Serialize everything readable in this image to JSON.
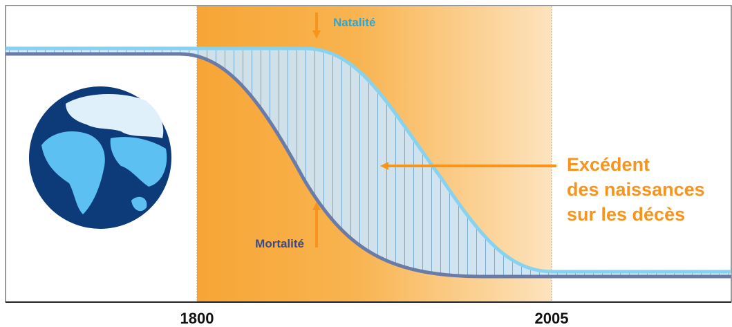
{
  "labels": {
    "birth": "Natalité",
    "death": "Mortalité",
    "surplus": [
      "Excédent",
      "des naissances",
      "sur les décès"
    ]
  },
  "axis": {
    "ticks": [
      "1800",
      "2005"
    ]
  }
}
